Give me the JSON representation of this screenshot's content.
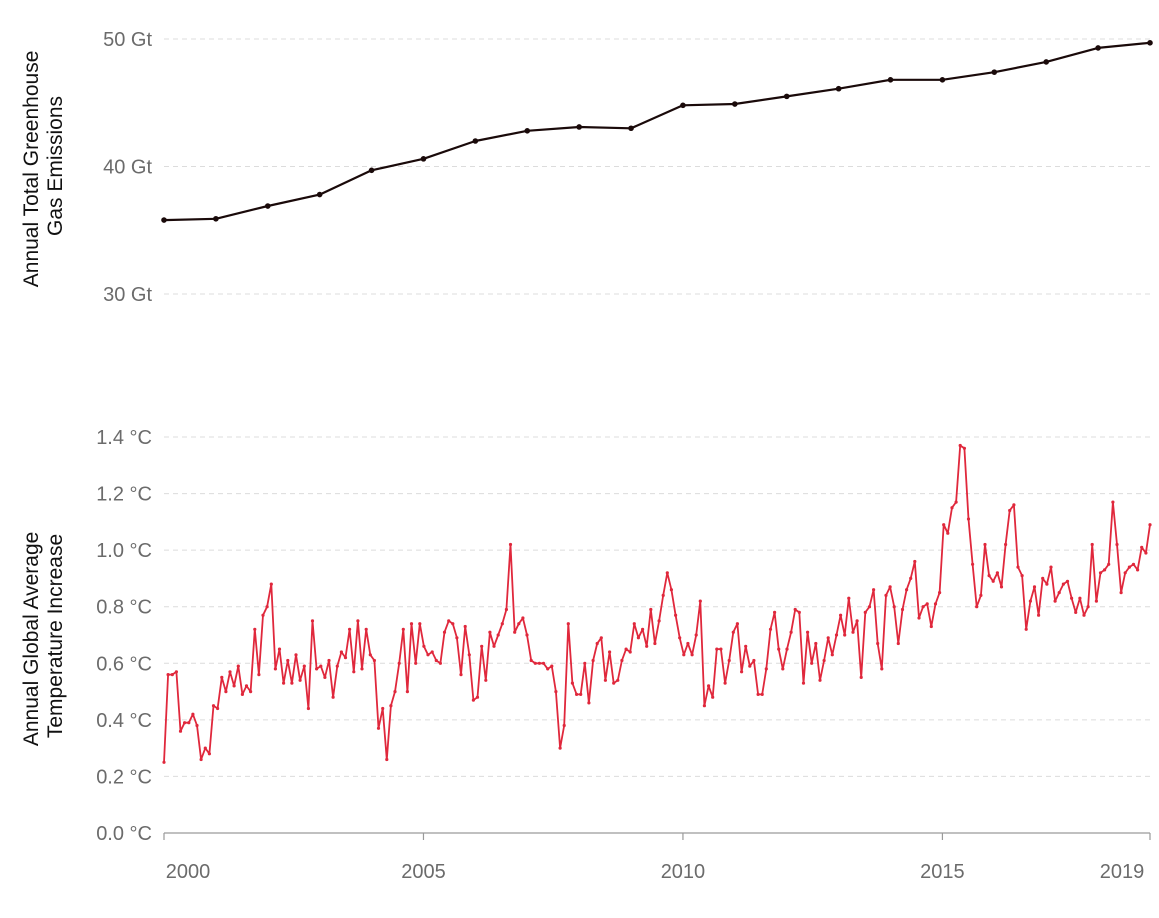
{
  "colors": {
    "emissions": "#1a0a0a",
    "temperature": "#e0283c",
    "tick_text": "#6b6b6b"
  },
  "chart_data": [
    {
      "type": "line",
      "title": "",
      "xlabel": "",
      "ylabel_lines": [
        "Annual Total Greenhouse",
        "Gas Emissions"
      ],
      "ylim": [
        27,
        51
      ],
      "yticks": [
        {
          "value": 30,
          "label": "30 Gt"
        },
        {
          "value": 40,
          "label": "40 Gt"
        },
        {
          "value": 50,
          "label": "50 Gt"
        }
      ],
      "grid": true,
      "series": [
        {
          "x": [
            2000,
            2001,
            2002,
            2003,
            2004,
            2005,
            2006,
            2007,
            2008,
            2009,
            2010,
            2011,
            2012,
            2013,
            2014,
            2015,
            2016,
            2017,
            2018,
            2019
          ],
          "values": [
            35.8,
            35.9,
            36.9,
            37.8,
            39.7,
            40.6,
            42.0,
            42.8,
            43.1,
            43.0,
            44.8,
            44.9,
            45.5,
            46.1,
            46.8,
            46.8,
            47.4,
            48.2,
            49.3,
            49.7
          ]
        }
      ]
    },
    {
      "type": "line",
      "title": "",
      "xlabel": "",
      "ylabel_lines": [
        "Annual Global Average",
        "Temperature Increase"
      ],
      "ylim": [
        0,
        1.4
      ],
      "yticks": [
        {
          "value": 0.0,
          "label": "0.0 °C"
        },
        {
          "value": 0.2,
          "label": "0.2 °C"
        },
        {
          "value": 0.4,
          "label": "0.4 °C"
        },
        {
          "value": 0.6,
          "label": "0.6 °C"
        },
        {
          "value": 0.8,
          "label": "0.8 °C"
        },
        {
          "value": 1.0,
          "label": "1.0 °C"
        },
        {
          "value": 1.2,
          "label": "1.2 °C"
        },
        {
          "value": 1.4,
          "label": "1.4 °C"
        }
      ],
      "xticks": [
        {
          "value": 2000,
          "label": "2000"
        },
        {
          "value": 2005,
          "label": "2005"
        },
        {
          "value": 2010,
          "label": "2010"
        },
        {
          "value": 2015,
          "label": "2015"
        },
        {
          "value": 2019,
          "label": "2019"
        }
      ],
      "x_range": [
        2000,
        2019
      ],
      "x_step": "monthly",
      "grid": true,
      "series": [
        {
          "values": [
            0.25,
            0.56,
            0.56,
            0.57,
            0.36,
            0.39,
            0.39,
            0.42,
            0.38,
            0.26,
            0.3,
            0.28,
            0.45,
            0.44,
            0.55,
            0.5,
            0.57,
            0.52,
            0.59,
            0.49,
            0.52,
            0.5,
            0.72,
            0.56,
            0.77,
            0.8,
            0.88,
            0.58,
            0.65,
            0.53,
            0.61,
            0.53,
            0.63,
            0.54,
            0.59,
            0.44,
            0.75,
            0.58,
            0.59,
            0.55,
            0.61,
            0.48,
            0.59,
            0.64,
            0.62,
            0.72,
            0.57,
            0.75,
            0.58,
            0.72,
            0.63,
            0.61,
            0.37,
            0.44,
            0.26,
            0.45,
            0.5,
            0.6,
            0.72,
            0.5,
            0.74,
            0.6,
            0.74,
            0.66,
            0.63,
            0.64,
            0.61,
            0.6,
            0.71,
            0.75,
            0.74,
            0.69,
            0.56,
            0.73,
            0.63,
            0.47,
            0.48,
            0.66,
            0.54,
            0.71,
            0.66,
            0.7,
            0.74,
            0.79,
            1.02,
            0.71,
            0.74,
            0.76,
            0.7,
            0.61,
            0.6,
            0.6,
            0.6,
            0.58,
            0.59,
            0.5,
            0.3,
            0.38,
            0.74,
            0.53,
            0.49,
            0.49,
            0.6,
            0.46,
            0.61,
            0.67,
            0.69,
            0.54,
            0.64,
            0.53,
            0.54,
            0.61,
            0.65,
            0.64,
            0.74,
            0.69,
            0.72,
            0.66,
            0.79,
            0.67,
            0.75,
            0.84,
            0.92,
            0.86,
            0.77,
            0.69,
            0.63,
            0.67,
            0.63,
            0.7,
            0.82,
            0.45,
            0.52,
            0.48,
            0.65,
            0.65,
            0.53,
            0.61,
            0.71,
            0.74,
            0.57,
            0.66,
            0.59,
            0.61,
            0.49,
            0.49,
            0.58,
            0.72,
            0.78,
            0.65,
            0.58,
            0.65,
            0.71,
            0.79,
            0.78,
            0.53,
            0.71,
            0.6,
            0.67,
            0.54,
            0.61,
            0.69,
            0.63,
            0.7,
            0.77,
            0.7,
            0.83,
            0.71,
            0.75,
            0.55,
            0.78,
            0.8,
            0.86,
            0.67,
            0.58,
            0.84,
            0.87,
            0.8,
            0.67,
            0.79,
            0.86,
            0.9,
            0.96,
            0.76,
            0.8,
            0.81,
            0.73,
            0.81,
            0.85,
            1.09,
            1.06,
            1.15,
            1.17,
            1.37,
            1.36,
            1.11,
            0.95,
            0.8,
            0.84,
            1.02,
            0.91,
            0.89,
            0.92,
            0.87,
            1.02,
            1.14,
            1.16,
            0.94,
            0.91,
            0.72,
            0.82,
            0.87,
            0.77,
            0.9,
            0.88,
            0.94,
            0.82,
            0.85,
            0.88,
            0.89,
            0.83,
            0.78,
            0.83,
            0.77,
            0.8,
            1.02,
            0.82,
            0.92,
            0.93,
            0.95,
            1.17,
            1.02,
            0.85,
            0.92,
            0.94,
            0.95,
            0.93,
            1.01,
            0.99,
            1.09
          ]
        }
      ]
    }
  ]
}
